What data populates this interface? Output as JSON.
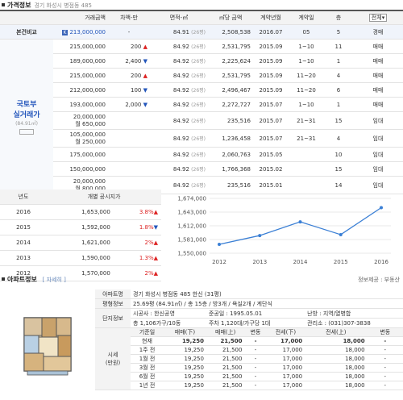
{
  "price_section": {
    "title": "가격정보",
    "subtitle": "경기 화성시 병점동 485",
    "headers": [
      "거래금액",
      "차액-만",
      "면적-㎡",
      "㎡당 금액",
      "계약년월",
      "계약일",
      "층",
      "전체"
    ],
    "compare_label": "본건비교",
    "compare_row": {
      "price": "213,000,000",
      "diff": "-",
      "area": "84.91",
      "area_type": "(26평)",
      "unit": "2,508,538",
      "ym": "2016.07",
      "day": "05",
      "floor": "5",
      "kind": "경매"
    },
    "side_label_1": "국토부",
    "side_label_2": "실거래가",
    "side_note": "(84.91㎡)",
    "rows": [
      {
        "price": "215,000,000",
        "diff": "200",
        "dir": "up",
        "area": "84.92",
        "area_type": "(26평)",
        "unit": "2,531,795",
        "ym": "2015.09",
        "day": "1~10",
        "floor": "11",
        "kind": "매매"
      },
      {
        "price": "189,000,000",
        "diff": "2,400",
        "dir": "down",
        "area": "84.92",
        "area_type": "(26평)",
        "unit": "2,225,624",
        "ym": "2015.09",
        "day": "1~10",
        "floor": "1",
        "kind": "매매"
      },
      {
        "price": "215,000,000",
        "diff": "200",
        "dir": "up",
        "area": "84.92",
        "area_type": "(26평)",
        "unit": "2,531,795",
        "ym": "2015.09",
        "day": "11~20",
        "floor": "4",
        "kind": "매매"
      },
      {
        "price": "212,000,000",
        "diff": "100",
        "dir": "down",
        "area": "84.92",
        "area_type": "(26평)",
        "unit": "2,496,467",
        "ym": "2015.09",
        "day": "11~20",
        "floor": "6",
        "kind": "매매"
      },
      {
        "price": "193,000,000",
        "diff": "2,000",
        "dir": "down",
        "area": "84.92",
        "area_type": "(26평)",
        "unit": "2,272,727",
        "ym": "2015.07",
        "day": "1~10",
        "floor": "1",
        "kind": "매매"
      },
      {
        "price": "20,000,000",
        "price2": "월 650,000",
        "diff": "",
        "dir": "",
        "area": "84.92",
        "area_type": "(26평)",
        "unit": "235,516",
        "ym": "2015.07",
        "day": "21~31",
        "floor": "15",
        "kind": "임대"
      },
      {
        "price": "105,000,000",
        "price2": "월 250,000",
        "diff": "",
        "dir": "",
        "area": "84.92",
        "area_type": "(26평)",
        "unit": "1,236,458",
        "ym": "2015.07",
        "day": "21~31",
        "floor": "4",
        "kind": "임대"
      },
      {
        "price": "175,000,000",
        "diff": "",
        "dir": "",
        "area": "84.92",
        "area_type": "(26평)",
        "unit": "2,060,763",
        "ym": "2015.05",
        "day": "",
        "floor": "10",
        "kind": "임대"
      },
      {
        "price": "150,000,000",
        "diff": "",
        "dir": "",
        "area": "84.92",
        "area_type": "(26평)",
        "unit": "1,766,368",
        "ym": "2015.02",
        "day": "",
        "floor": "15",
        "kind": "임대"
      },
      {
        "price": "20,000,000",
        "price2": "월 800,000",
        "diff": "",
        "dir": "",
        "area": "84.92",
        "area_type": "(26평)",
        "unit": "235,516",
        "ym": "2015.01",
        "day": "",
        "floor": "14",
        "kind": "임대"
      }
    ]
  },
  "official": {
    "headers": [
      "년도",
      "개별 공시지가"
    ],
    "rows": [
      {
        "year": "2016",
        "value": "1,653,000",
        "pct": "3.8%",
        "dir": "up"
      },
      {
        "year": "2015",
        "value": "1,592,000",
        "pct": "1.8%",
        "dir": "down"
      },
      {
        "year": "2014",
        "value": "1,621,000",
        "pct": "2%",
        "dir": "up"
      },
      {
        "year": "2013",
        "value": "1,590,000",
        "pct": "1.3%",
        "dir": "up"
      },
      {
        "year": "2012",
        "value": "1,570,000",
        "pct": "2%",
        "dir": "up"
      }
    ]
  },
  "chart_data": {
    "type": "line",
    "x": [
      "2012",
      "2013",
      "2014",
      "2015",
      "2016"
    ],
    "series": [
      {
        "values": [
          1570000,
          1590000,
          1621000,
          1592000,
          1653000
        ]
      }
    ],
    "yticks": [
      "1,674,000",
      "1,643,000",
      "1,612,000",
      "1,581,000",
      "1,550,000"
    ],
    "ylim": [
      1550000,
      1674000
    ],
    "color": "#3a7fd5",
    "grid": true
  },
  "apt_section": {
    "title": "아파트정보",
    "detail_link": "[ 자세히 ]",
    "provider": "정보제공 : 부동산",
    "name_label": "아파트명",
    "name": "경기 화성시 병점동 485 한신 (31평)",
    "layout_label": "평형정보",
    "layout": "25.69평 (84.91㎡) / 총 15층 / 방3개 / 욕실2개 / 계단식",
    "complex_label": "단지정보",
    "builder": "시공사 : 한신공영",
    "completed": "준공일 : 1995.05.01",
    "heating": "난방 : 지역/열병합",
    "households": "총 1,106가구/10동",
    "parking": "주차 1,120대/가구당 1대",
    "office": "관리소 : (031)307-3838",
    "market_label": "시세",
    "market_unit": "(만원)",
    "price_headers": [
      "기준일",
      "매매(下)",
      "매매(上)",
      "변동",
      "전세(下)",
      "전세(上)",
      "변동"
    ],
    "price_rows": [
      [
        "현재",
        "19,250",
        "21,500",
        "-",
        "17,000",
        "18,000",
        "-"
      ],
      [
        "1주 전",
        "19,250",
        "21,500",
        "-",
        "17,000",
        "18,000",
        "-"
      ],
      [
        "1월 전",
        "19,250",
        "21,500",
        "-",
        "17,000",
        "18,000",
        "-"
      ],
      [
        "3월 전",
        "19,250",
        "21,500",
        "-",
        "17,000",
        "18,000",
        "-"
      ],
      [
        "6월 전",
        "19,250",
        "21,500",
        "-",
        "17,000",
        "18,000",
        "-"
      ],
      [
        "1년 전",
        "19,250",
        "21,500",
        "-",
        "17,000",
        "18,000",
        "-"
      ]
    ]
  }
}
